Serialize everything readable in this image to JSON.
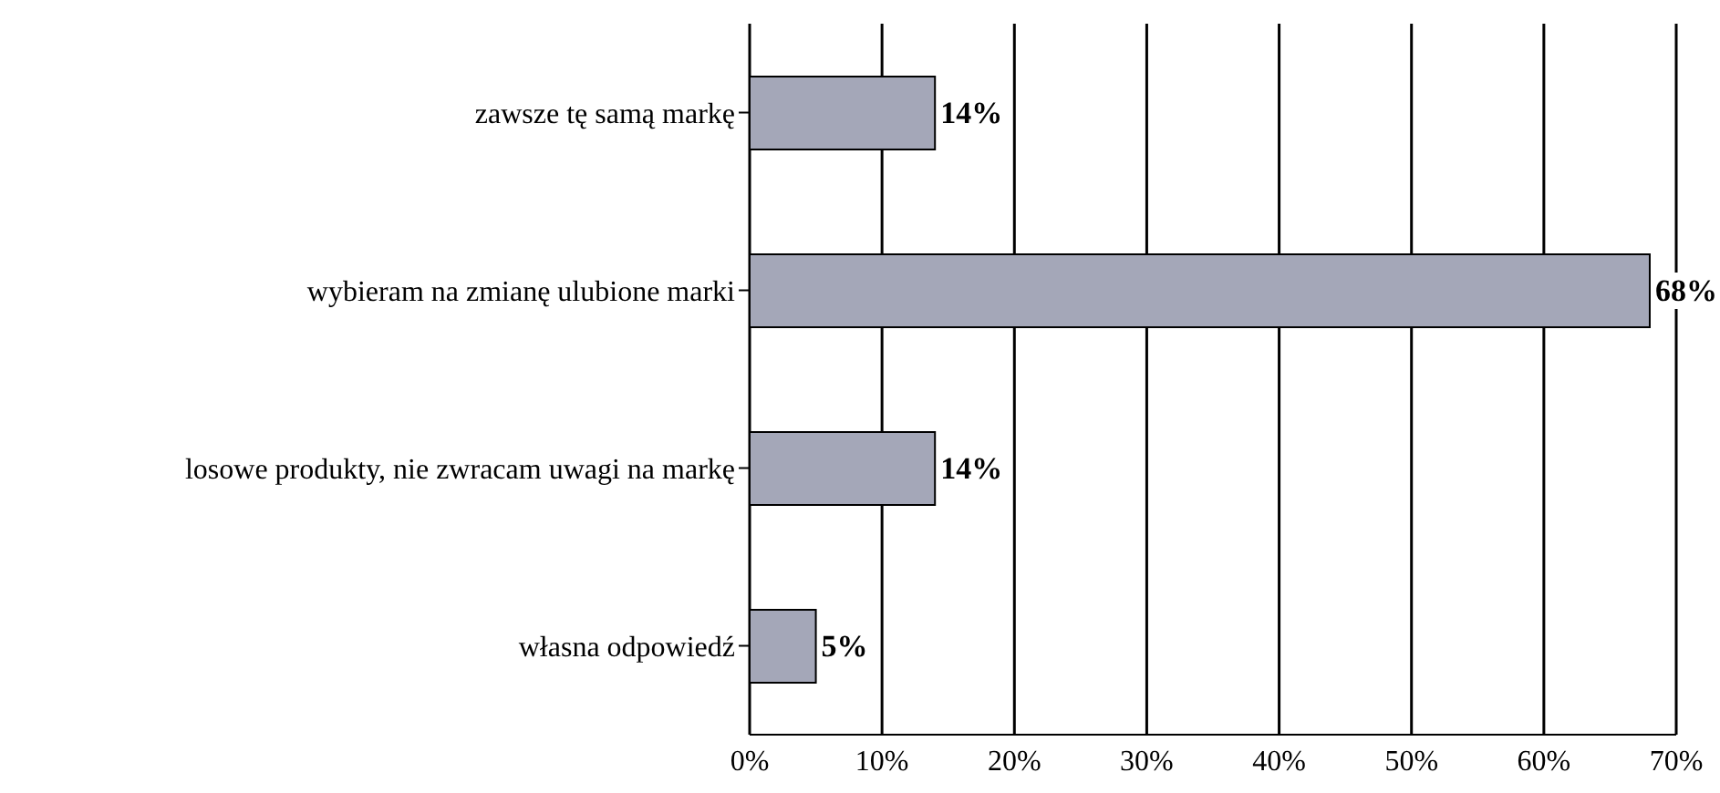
{
  "chart_data": {
    "type": "bar",
    "orientation": "horizontal",
    "categories": [
      "zawsze tę samą markę",
      "wybieram na zmianę ulubione marki",
      "losowe produkty, nie zwracam uwagi na markę",
      "własna odpowiedź"
    ],
    "values": [
      14,
      68,
      14,
      5
    ],
    "color": "#a4a7b8",
    "value_labels": [
      "14%",
      "68%",
      "14%",
      "5%"
    ],
    "xlim": [
      0,
      70
    ],
    "xticks": [
      {
        "value": 0,
        "label": "0%"
      },
      {
        "value": 10,
        "label": "10%"
      },
      {
        "value": 20,
        "label": "20%"
      },
      {
        "value": 30,
        "label": "30%"
      },
      {
        "value": 40,
        "label": "40%"
      },
      {
        "value": 50,
        "label": "50%"
      },
      {
        "value": 60,
        "label": "60%"
      },
      {
        "value": 70,
        "label": "70%"
      }
    ],
    "grid": "x"
  }
}
